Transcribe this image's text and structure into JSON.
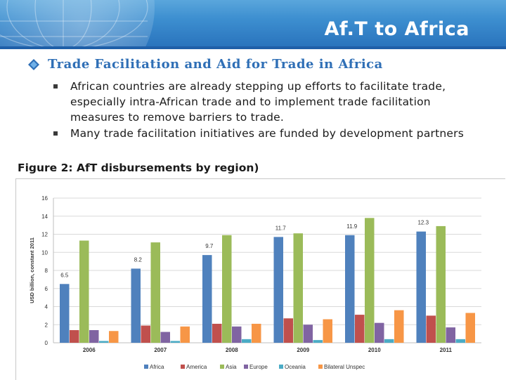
{
  "slide": {
    "title": "Af.T to Africa",
    "heading": "Trade Facilitation and Aid for Trade in Africa",
    "bullets": [
      "African countries are already stepping up efforts to facilitate trade, especially intra-African trade and to implement trade facilitation measures to remove barriers to trade.",
      "Many trade facilitation initiatives are funded by development partners"
    ],
    "figure_title": "Figure 2: AfT disbursements by region)"
  },
  "colors": {
    "header": "#3d8fd0",
    "heading": "#2f6fb6"
  },
  "chart_data": {
    "type": "bar",
    "ylabel": "USD billion, constant 2011",
    "ylim": [
      0,
      16
    ],
    "yticks": [
      0,
      2,
      4,
      6,
      8,
      10,
      12,
      14,
      16
    ],
    "grid": true,
    "legend": "bottom",
    "categories": [
      "2006",
      "2007",
      "2008",
      "2009",
      "2010",
      "2011"
    ],
    "series": [
      {
        "name": "Africa",
        "color": "#4f81bd",
        "values": [
          6.5,
          8.2,
          9.7,
          11.7,
          11.9,
          12.3
        ],
        "labels": [
          "6.5",
          "8.2",
          "9.7",
          "11.7",
          "11.9",
          "12.3"
        ]
      },
      {
        "name": "America",
        "color": "#c0504d",
        "values": [
          1.4,
          1.9,
          2.1,
          2.7,
          3.1,
          3.0
        ]
      },
      {
        "name": "Asia",
        "color": "#9bbb59",
        "values": [
          11.3,
          11.1,
          11.9,
          12.1,
          13.8,
          12.9
        ]
      },
      {
        "name": "Europe",
        "color": "#8064a2",
        "values": [
          1.4,
          1.2,
          1.8,
          2.0,
          2.2,
          1.7
        ]
      },
      {
        "name": "Oceania",
        "color": "#4bacc6",
        "values": [
          0.2,
          0.2,
          0.4,
          0.3,
          0.4,
          0.4
        ]
      },
      {
        "name": "Bilateral Unspec",
        "color": "#f79646",
        "values": [
          1.3,
          1.8,
          2.1,
          2.6,
          3.6,
          3.3
        ]
      }
    ]
  }
}
